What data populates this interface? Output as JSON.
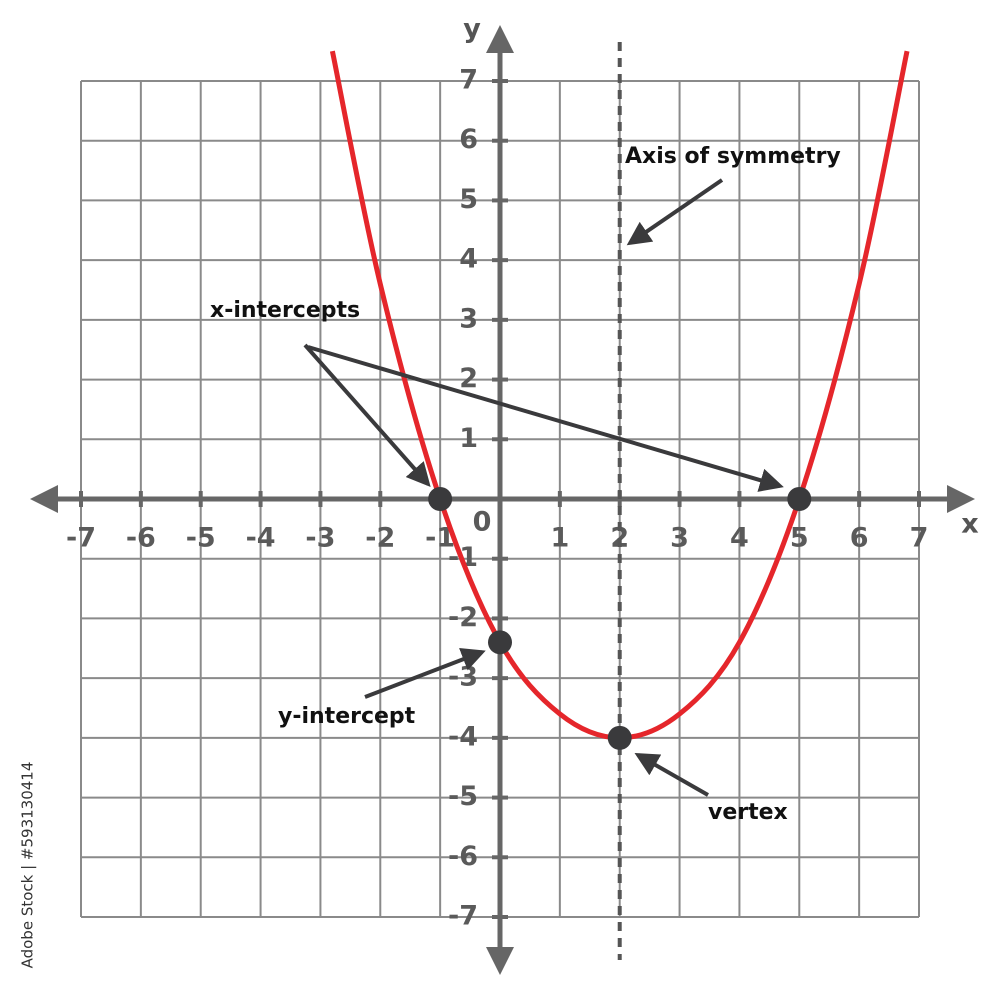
{
  "chart_data": {
    "type": "line",
    "x": [
      -2.8,
      -2,
      -1,
      0,
      1,
      2,
      3,
      4,
      5,
      6,
      6.8
    ],
    "series": [
      {
        "color": "#e5262b",
        "values": [
          7.5,
          3.6,
          0,
          -2.4,
          -3.6,
          -4,
          -3.6,
          -2.4,
          0,
          3.6,
          7.5
        ]
      }
    ],
    "xlim": [
      -7,
      7
    ],
    "ylim": [
      -7,
      7
    ],
    "xticks": [
      -7,
      -6,
      -5,
      -4,
      -3,
      -2,
      -1,
      0,
      1,
      2,
      3,
      4,
      5,
      6,
      7
    ],
    "yticks": [
      -7,
      -6,
      -5,
      -4,
      -3,
      -2,
      -1,
      1,
      2,
      3,
      4,
      5,
      6,
      7
    ],
    "x_label": "x",
    "y_label": "y",
    "grid": true,
    "axis_of_symmetry": 2,
    "points": {
      "x": [
        -1,
        5,
        0,
        2
      ],
      "y": [
        0,
        0,
        -2.4,
        -4
      ],
      "color": "#3a3a3c"
    },
    "annotations": [
      "x-intercepts",
      "Axis of symmetry",
      "y-intercept",
      "vertex"
    ]
  },
  "watermark": "Adobe Stock | #593130414"
}
